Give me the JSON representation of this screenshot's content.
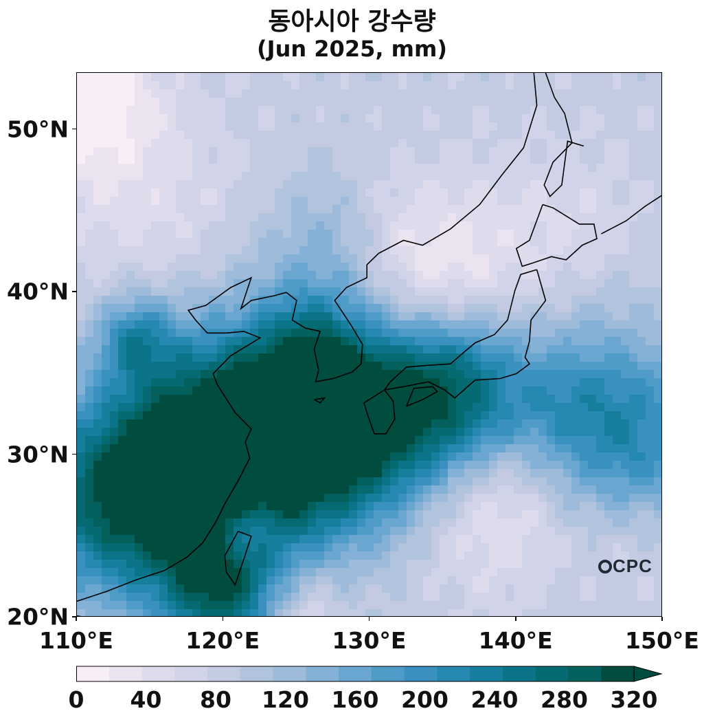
{
  "title": "동아시아 강수량",
  "subtitle": "(Jun 2025, mm)",
  "map": {
    "extent_lon": [
      110,
      150
    ],
    "extent_lat": [
      20,
      53.5
    ],
    "lat_ticks": [
      {
        "value": 20,
        "label": "20°N"
      },
      {
        "value": 30,
        "label": "30°N"
      },
      {
        "value": 40,
        "label": "40°N"
      },
      {
        "value": 50,
        "label": "50°N"
      }
    ],
    "lon_ticks": [
      {
        "value": 110,
        "label": "110°E"
      },
      {
        "value": 120,
        "label": "120°E"
      },
      {
        "value": 130,
        "label": "130°E"
      },
      {
        "value": 140,
        "label": "140°E"
      },
      {
        "value": 150,
        "label": "150°E"
      }
    ],
    "logo_text": "CPC"
  },
  "colorbar": {
    "levels": [
      0,
      20,
      40,
      60,
      80,
      100,
      120,
      140,
      160,
      180,
      200,
      220,
      240,
      260,
      280,
      300,
      320
    ],
    "colors": [
      "#f7eef6",
      "#ebe3f0",
      "#dedcec",
      "#d1d3e8",
      "#c3cbe3",
      "#b2c3de",
      "#9ebbdb",
      "#86b1d6",
      "#6aa6d0",
      "#4f9bc8",
      "#3a91c0",
      "#2589b2",
      "#167f9d",
      "#0b7488",
      "#056a72",
      "#03605c",
      "#004d40"
    ],
    "labels": [
      "0",
      "40",
      "80",
      "120",
      "160",
      "200",
      "240",
      "280",
      "320"
    ],
    "label_values": [
      0,
      40,
      80,
      120,
      160,
      200,
      240,
      280,
      320
    ],
    "extend": "max"
  },
  "precip_field": {
    "base_mm": 90,
    "blobs": [
      {
        "lon": 118,
        "lat": 29.5,
        "r": 5.0,
        "mm": 230
      },
      {
        "lon": 124,
        "lat": 31.5,
        "r": 4.5,
        "mm": 210
      },
      {
        "lon": 130,
        "lat": 32.5,
        "r": 4.5,
        "mm": 200
      },
      {
        "lon": 136,
        "lat": 34.0,
        "r": 3.5,
        "mm": 170
      },
      {
        "lon": 112,
        "lat": 27.0,
        "r": 4.0,
        "mm": 150
      },
      {
        "lon": 120,
        "lat": 21.5,
        "r": 3.0,
        "mm": 170
      },
      {
        "lon": 148,
        "lat": 31.0,
        "r": 4.0,
        "mm": 130
      },
      {
        "lon": 143,
        "lat": 33.0,
        "r": 3.0,
        "mm": 70
      },
      {
        "lon": 114,
        "lat": 37.2,
        "r": 1.8,
        "mm": 110
      },
      {
        "lon": 126,
        "lat": 37.0,
        "r": 2.2,
        "mm": 60
      },
      {
        "lon": 127,
        "lat": 43.0,
        "r": 3.0,
        "mm": 50
      },
      {
        "lon": 134,
        "lat": 40.5,
        "r": 4.0,
        "mm": -90
      },
      {
        "lon": 143,
        "lat": 44.0,
        "r": 4.0,
        "mm": -30
      },
      {
        "lon": 114,
        "lat": 46.0,
        "r": 5.0,
        "mm": -40
      },
      {
        "lon": 121.5,
        "lat": 25.5,
        "r": 1.6,
        "mm": -110
      },
      {
        "lon": 138,
        "lat": 27.5,
        "r": 4.0,
        "mm": -70
      },
      {
        "lon": 125,
        "lat": 20.5,
        "r": 2.0,
        "mm": -70
      },
      {
        "lon": 111,
        "lat": 52.0,
        "r": 3.0,
        "mm": -80
      },
      {
        "lon": 148,
        "lat": 25.0,
        "r": 2.5,
        "mm": -30
      },
      {
        "lon": 146,
        "lat": 38.0,
        "r": 3.0,
        "mm": 20
      }
    ]
  },
  "coastlines": [
    {
      "name": "china-coast",
      "pts": [
        [
          110,
          21.0
        ],
        [
          112,
          21.6
        ],
        [
          114,
          22.3
        ],
        [
          116,
          22.9
        ],
        [
          117.5,
          23.7
        ],
        [
          118.6,
          24.6
        ],
        [
          119.5,
          25.9
        ],
        [
          120.1,
          27.0
        ],
        [
          121,
          28.4
        ],
        [
          121.8,
          29.8
        ],
        [
          121.5,
          30.8
        ],
        [
          121.9,
          31.6
        ],
        [
          120.8,
          32.6
        ],
        [
          119.6,
          34.3
        ],
        [
          119.3,
          35.0
        ],
        [
          120.5,
          36.1
        ],
        [
          122.5,
          37.2
        ],
        [
          121.4,
          37.6
        ],
        [
          120.2,
          37.5
        ],
        [
          118.9,
          37.5
        ],
        [
          118.1,
          38.3
        ],
        [
          117.6,
          38.9
        ],
        [
          118.8,
          39.2
        ],
        [
          120.5,
          40.3
        ],
        [
          121.9,
          40.9
        ],
        [
          121.2,
          39.0
        ],
        [
          121.9,
          39.5
        ],
        [
          123.5,
          39.8
        ],
        [
          124.3,
          40.0
        ]
      ]
    },
    {
      "name": "korea",
      "pts": [
        [
          124.3,
          40.0
        ],
        [
          125.0,
          39.5
        ],
        [
          124.7,
          38.3
        ],
        [
          125.6,
          37.8
        ],
        [
          126.6,
          37.6
        ],
        [
          126.2,
          36.5
        ],
        [
          126.5,
          35.2
        ],
        [
          126.3,
          34.5
        ],
        [
          127.5,
          34.7
        ],
        [
          128.8,
          35.1
        ],
        [
          129.4,
          35.6
        ],
        [
          129.5,
          36.8
        ],
        [
          128.7,
          38.0
        ],
        [
          127.6,
          39.5
        ],
        [
          128.4,
          40.3
        ],
        [
          129.8,
          40.9
        ],
        [
          129.8,
          41.7
        ],
        [
          130.6,
          42.4
        ],
        [
          132.3,
          43.2
        ],
        [
          133.6,
          42.9
        ],
        [
          135.5,
          43.9
        ],
        [
          137.5,
          45.4
        ],
        [
          139.0,
          47.2
        ],
        [
          140.5,
          48.9
        ],
        [
          141.4,
          51.5
        ],
        [
          141.2,
          53.5
        ]
      ]
    },
    {
      "name": "sakhalin",
      "pts": [
        [
          142.0,
          53.5
        ],
        [
          142.6,
          52.0
        ],
        [
          143.3,
          51.0
        ],
        [
          143.8,
          49.2
        ],
        [
          142.5,
          48.0
        ],
        [
          141.9,
          46.6
        ],
        [
          142.3,
          45.9
        ],
        [
          143.1,
          46.6
        ],
        [
          143.5,
          49.3
        ],
        [
          144.6,
          49.0
        ]
      ]
    },
    {
      "name": "hokkaido",
      "pts": [
        [
          141.8,
          45.4
        ],
        [
          140.9,
          43.2
        ],
        [
          140.0,
          42.7
        ],
        [
          140.4,
          41.6
        ],
        [
          141.1,
          41.8
        ],
        [
          142.4,
          42.2
        ],
        [
          143.4,
          42.0
        ],
        [
          144.5,
          42.9
        ],
        [
          145.5,
          43.3
        ],
        [
          145.3,
          44.2
        ],
        [
          144.3,
          44.2
        ],
        [
          142.5,
          45.2
        ],
        [
          141.8,
          45.4
        ]
      ]
    },
    {
      "name": "honshu",
      "pts": [
        [
          141.4,
          41.4
        ],
        [
          142.0,
          39.5
        ],
        [
          141.0,
          38.3
        ],
        [
          140.9,
          37.0
        ],
        [
          140.6,
          36.0
        ],
        [
          140.9,
          35.6
        ],
        [
          140.0,
          35.0
        ],
        [
          138.9,
          34.7
        ],
        [
          137.2,
          34.6
        ],
        [
          136.8,
          34.3
        ],
        [
          135.8,
          33.5
        ],
        [
          135.1,
          34.0
        ],
        [
          134.0,
          34.5
        ],
        [
          132.3,
          34.2
        ],
        [
          131.0,
          34.0
        ],
        [
          131.4,
          34.5
        ],
        [
          132.5,
          35.4
        ],
        [
          133.8,
          35.5
        ],
        [
          135.5,
          35.6
        ],
        [
          136.4,
          36.3
        ],
        [
          137.2,
          36.9
        ],
        [
          138.5,
          37.4
        ],
        [
          139.4,
          38.3
        ],
        [
          139.9,
          40.1
        ],
        [
          140.3,
          41.1
        ],
        [
          141.4,
          41.4
        ]
      ]
    },
    {
      "name": "shikoku",
      "pts": [
        [
          132.5,
          33.0
        ],
        [
          133.6,
          33.4
        ],
        [
          134.6,
          33.9
        ],
        [
          134.3,
          34.2
        ],
        [
          133.0,
          34.1
        ],
        [
          132.5,
          33.0
        ]
      ]
    },
    {
      "name": "kyushu",
      "pts": [
        [
          131.0,
          34.0
        ],
        [
          131.6,
          33.3
        ],
        [
          131.7,
          32.2
        ],
        [
          131.1,
          31.3
        ],
        [
          130.3,
          31.3
        ],
        [
          129.8,
          32.6
        ],
        [
          129.6,
          33.2
        ],
        [
          130.3,
          33.6
        ],
        [
          131.0,
          34.0
        ]
      ]
    },
    {
      "name": "taiwan",
      "pts": [
        [
          121.0,
          25.3
        ],
        [
          121.9,
          25.0
        ],
        [
          121.4,
          23.6
        ],
        [
          120.8,
          22.0
        ],
        [
          120.2,
          22.8
        ],
        [
          120.1,
          23.8
        ],
        [
          121.0,
          25.3
        ]
      ]
    },
    {
      "name": "hainan",
      "pts": [
        [
          110.0,
          20.1
        ],
        [
          110.6,
          20.0
        ],
        [
          110.9,
          19.6
        ],
        [
          110.0,
          19.5
        ]
      ]
    },
    {
      "name": "jeju",
      "pts": [
        [
          126.2,
          33.4
        ],
        [
          126.9,
          33.5
        ],
        [
          126.6,
          33.2
        ],
        [
          126.2,
          33.4
        ]
      ]
    },
    {
      "name": "kurils",
      "pts": [
        [
          145.8,
          43.6
        ],
        [
          147.5,
          44.4
        ],
        [
          148.8,
          45.3
        ],
        [
          150.0,
          46.0
        ]
      ]
    }
  ]
}
